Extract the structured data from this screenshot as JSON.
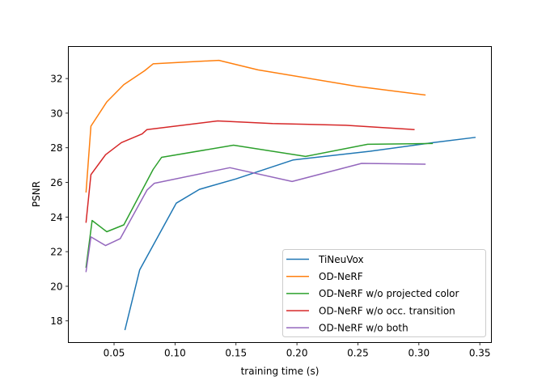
{
  "chart_data": {
    "type": "line",
    "title": "",
    "xlabel": "training time (s)",
    "ylabel": "PSNR",
    "xlim": [
      0.0125,
      0.3595
    ],
    "ylim": [
      16.75,
      33.85
    ],
    "xticks": [
      0.05,
      0.1,
      0.15,
      0.2,
      0.25,
      0.3,
      0.35
    ],
    "xtick_labels": [
      "0.05",
      "0.10",
      "0.15",
      "0.20",
      "0.25",
      "0.30",
      "0.35"
    ],
    "yticks": [
      18,
      20,
      22,
      24,
      26,
      28,
      30,
      32
    ],
    "ytick_labels": [
      "18",
      "20",
      "22",
      "24",
      "26",
      "28",
      "30",
      "32"
    ],
    "grid": false,
    "legend_position": "lower right",
    "series": [
      {
        "name": "TiNeuVox",
        "color": "#1f77b4",
        "x": [
          0.059,
          0.071,
          0.101,
          0.12,
          0.15,
          0.197,
          0.26,
          0.312,
          0.346
        ],
        "y": [
          17.5,
          20.95,
          24.8,
          25.6,
          26.2,
          27.3,
          27.8,
          28.3,
          28.6
        ]
      },
      {
        "name": "OD-NeRF",
        "color": "#ff7f0e",
        "x": [
          0.027,
          0.031,
          0.044,
          0.058,
          0.075,
          0.082,
          0.136,
          0.168,
          0.249,
          0.305
        ],
        "y": [
          25.45,
          29.25,
          30.65,
          31.65,
          32.45,
          32.85,
          33.05,
          32.5,
          31.55,
          31.05
        ]
      },
      {
        "name": "OD-NeRF w/o projected color",
        "color": "#2ca02c",
        "x": [
          0.027,
          0.032,
          0.044,
          0.058,
          0.082,
          0.089,
          0.148,
          0.207,
          0.258,
          0.311
        ],
        "y": [
          21.1,
          23.8,
          23.15,
          23.55,
          26.75,
          27.45,
          28.15,
          27.5,
          28.2,
          28.25
        ]
      },
      {
        "name": "OD-NeRF w/o occ. transition",
        "color": "#d62728",
        "x": [
          0.027,
          0.031,
          0.043,
          0.056,
          0.073,
          0.077,
          0.135,
          0.18,
          0.24,
          0.296
        ],
        "y": [
          23.7,
          26.45,
          27.6,
          28.3,
          28.8,
          29.05,
          29.55,
          29.4,
          29.3,
          29.05
        ]
      },
      {
        "name": "OD-NeRF w/o both",
        "color": "#9467bd",
        "x": [
          0.027,
          0.031,
          0.043,
          0.055,
          0.077,
          0.083,
          0.145,
          0.196,
          0.253,
          0.305
        ],
        "y": [
          20.85,
          22.85,
          22.35,
          22.75,
          25.55,
          25.95,
          26.85,
          26.05,
          27.1,
          27.05
        ]
      }
    ]
  }
}
